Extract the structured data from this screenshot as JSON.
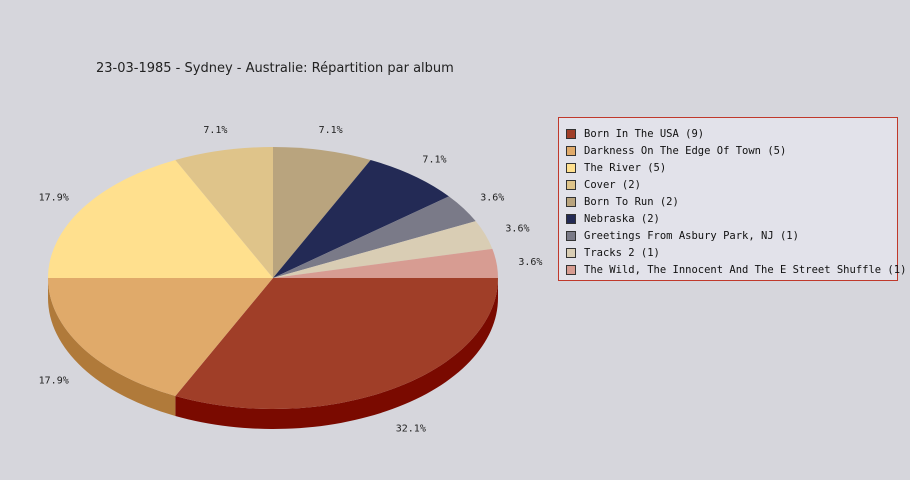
{
  "chart_data": {
    "type": "pie",
    "title": "23-03-1985 - Sydney - Australie:  Répartition par album",
    "legend_position": "right",
    "slices": [
      {
        "label": "Born In The USA",
        "count": 9,
        "percent": "32.1%",
        "color": "#a03e28",
        "side": "#7a0a00"
      },
      {
        "label": "Darkness On The Edge Of Town",
        "count": 5,
        "percent": "17.9%",
        "color": "#e0aa6a",
        "side": "#b07a3a"
      },
      {
        "label": "The River",
        "count": 5,
        "percent": "17.9%",
        "color": "#ffe08e",
        "side": "#cfb060"
      },
      {
        "label": "Cover",
        "count": 2,
        "percent": "7.1%",
        "color": "#dfc48a",
        "side": "#af945a"
      },
      {
        "label": "Born To Run",
        "count": 2,
        "percent": "7.1%",
        "color": "#b9a47e",
        "side": "#89744e"
      },
      {
        "label": "Nebraska",
        "count": 2,
        "percent": "7.1%",
        "color": "#232a55",
        "side": "#131a35"
      },
      {
        "label": "Greetings From Asbury Park, NJ",
        "count": 1,
        "percent": "3.6%",
        "color": "#7a7a88",
        "side": "#4a4a58"
      },
      {
        "label": "Tracks 2",
        "count": 1,
        "percent": "3.6%",
        "color": "#d9cdb4",
        "side": "#a99d84"
      },
      {
        "label": "The Wild, The Innocent And The E Street Shuffle",
        "count": 1,
        "percent": "3.6%",
        "color": "#d79c92",
        "side": "#a76c62"
      }
    ]
  }
}
